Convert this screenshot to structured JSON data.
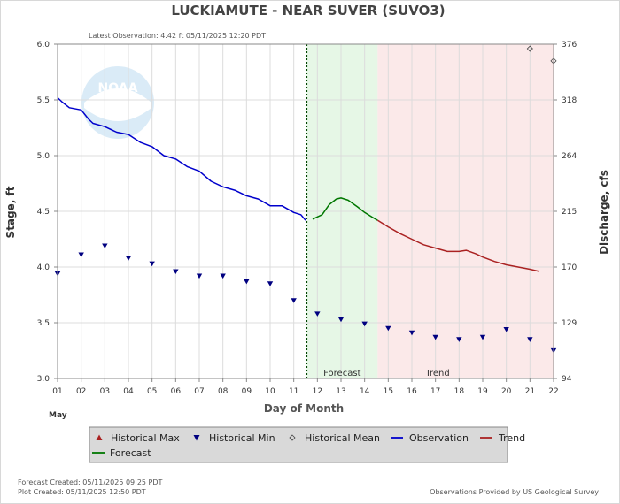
{
  "chart_data": {
    "type": "line",
    "title": "LUCKIAMUTE - NEAR SUVER  (SUVO3)",
    "subtitle": "Latest Observation: 4.42 ft 05/11/2025 12:20 PDT",
    "xlabel": "Day of Month",
    "x_month_label": "May",
    "ylabel_left": "Stage, ft",
    "ylabel_right": "Discharge, cfs",
    "xlim": [
      1,
      22
    ],
    "ylim": [
      3.0,
      6.0
    ],
    "x_ticks": [
      "01",
      "02",
      "03",
      "04",
      "05",
      "06",
      "07",
      "08",
      "09",
      "10",
      "11",
      "12",
      "13",
      "14",
      "15",
      "16",
      "17",
      "18",
      "19",
      "20",
      "21",
      "22"
    ],
    "y_ticks_left": [
      "3.0",
      "3.5",
      "4.0",
      "4.5",
      "5.0",
      "5.5",
      "6.0"
    ],
    "y_ticks_right": [
      {
        "label": "94",
        "stage": 3.0
      },
      {
        "label": "129",
        "stage": 3.5
      },
      {
        "label": "170",
        "stage": 4.0
      },
      {
        "label": "215",
        "stage": 4.5
      },
      {
        "label": "264",
        "stage": 5.0
      },
      {
        "label": "318",
        "stage": 5.5
      },
      {
        "label": "376",
        "stage": 6.0
      }
    ],
    "forecast_region_label": "Forecast",
    "trend_region_label": "Trend",
    "forecast_region": [
      11.55,
      14.55
    ],
    "trend_region": [
      14.55,
      22
    ],
    "forecast_start_line": 11.55,
    "grid": true,
    "series": [
      {
        "name": "Observation",
        "color": "#0000cc",
        "x": [
          1.0,
          1.2,
          1.5,
          2.0,
          2.3,
          2.5,
          3.0,
          3.5,
          4.0,
          4.5,
          5.0,
          5.5,
          6.0,
          6.5,
          7.0,
          7.5,
          8.0,
          8.5,
          9.0,
          9.5,
          10.0,
          10.5,
          11.0,
          11.3,
          11.5
        ],
        "y": [
          5.52,
          5.48,
          5.43,
          5.41,
          5.33,
          5.29,
          5.26,
          5.21,
          5.19,
          5.12,
          5.08,
          5.0,
          4.97,
          4.9,
          4.86,
          4.77,
          4.72,
          4.69,
          4.64,
          4.61,
          4.55,
          4.55,
          4.49,
          4.47,
          4.42
        ]
      },
      {
        "name": "Forecast",
        "color": "#007700",
        "x": [
          11.8,
          12.2,
          12.5,
          12.8,
          13.0,
          13.3,
          13.7,
          14.0,
          14.3,
          14.55
        ],
        "y": [
          4.43,
          4.47,
          4.56,
          4.61,
          4.62,
          4.6,
          4.54,
          4.49,
          4.45,
          4.42
        ]
      },
      {
        "name": "Trend",
        "color": "#aa2222",
        "x": [
          14.55,
          15.0,
          15.5,
          16.0,
          16.5,
          17.0,
          17.5,
          18.0,
          18.3,
          18.7,
          19.0,
          19.5,
          20.0,
          20.5,
          21.0,
          21.4
        ],
        "y": [
          4.42,
          4.36,
          4.3,
          4.25,
          4.2,
          4.17,
          4.14,
          4.14,
          4.15,
          4.12,
          4.09,
          4.05,
          4.02,
          4.0,
          3.98,
          3.96
        ]
      },
      {
        "name": "Historical Min",
        "color": "#000080",
        "marker": "triangle-down",
        "x": [
          1,
          2,
          3,
          4,
          5,
          6,
          7,
          8,
          9,
          10,
          11,
          12,
          13,
          14,
          15,
          16,
          17,
          18,
          19,
          20,
          21,
          22
        ],
        "y": [
          3.94,
          4.11,
          4.19,
          4.08,
          4.03,
          3.96,
          3.92,
          3.92,
          3.87,
          3.85,
          3.7,
          3.58,
          3.53,
          3.49,
          3.45,
          3.41,
          3.37,
          3.35,
          3.37,
          3.44,
          3.35,
          3.25
        ]
      },
      {
        "name": "Historical Mean",
        "color": "#444444",
        "marker": "diamond",
        "x": [
          21,
          22
        ],
        "y": [
          5.96,
          5.85
        ]
      }
    ]
  },
  "legend": {
    "items": [
      {
        "label": "Historical Max",
        "symbol": "triangle-up",
        "color": "#aa2222"
      },
      {
        "label": "Historical Min",
        "symbol": "triangle-down",
        "color": "#000080"
      },
      {
        "label": "Historical Mean",
        "symbol": "diamond",
        "color": "#444444"
      },
      {
        "label": "Observation",
        "symbol": "line",
        "color": "#0000cc"
      },
      {
        "label": "Trend",
        "symbol": "line",
        "color": "#aa2222"
      },
      {
        "label": "Forecast",
        "symbol": "line",
        "color": "#007700"
      }
    ]
  },
  "watermark": {
    "text": "NOAA"
  },
  "footer": {
    "forecast_created": "Forecast Created: 05/11/2025 09:25 PDT",
    "plot_created": "Plot Created: 05/11/2025 12:50 PDT",
    "provider": "Observations Provided by US Geological Survey"
  },
  "colors": {
    "forecast_bg": "#e6f7e6",
    "trend_bg": "#fbe9e9",
    "legend_bg": "#d9d9d9"
  }
}
